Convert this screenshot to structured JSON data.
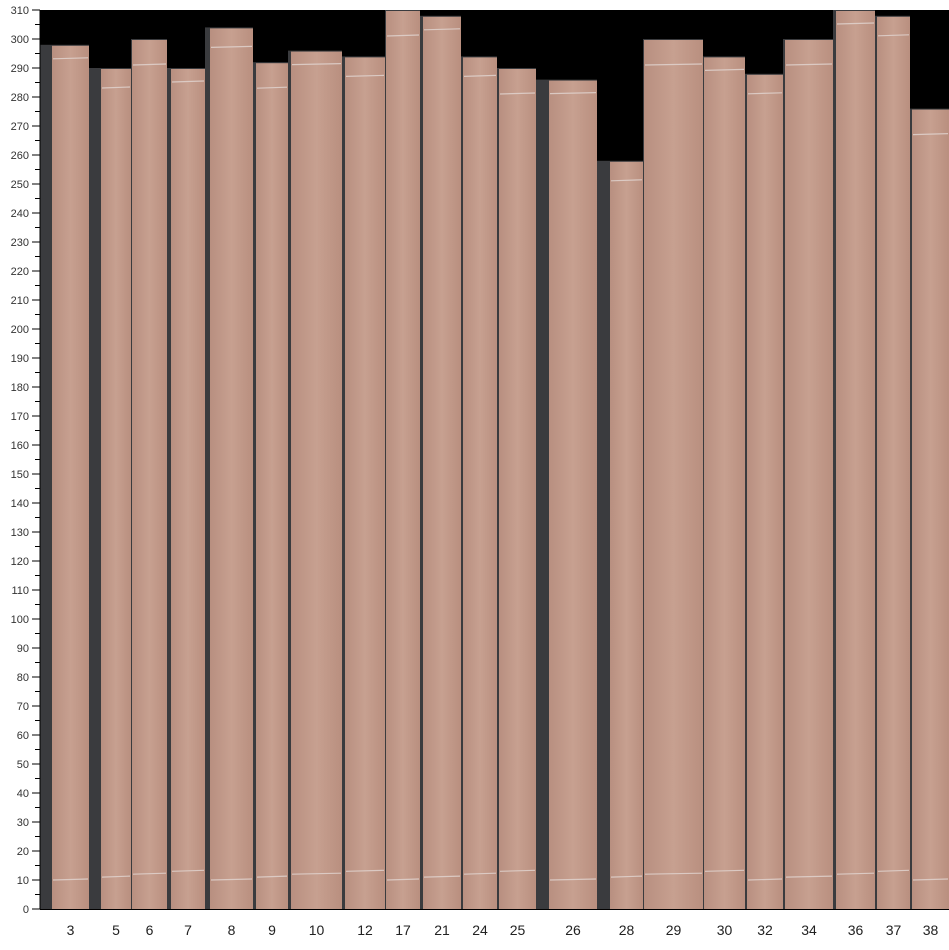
{
  "chart_data": {
    "type": "bar",
    "title": "",
    "xlabel": "",
    "ylabel": "",
    "ylim": [
      0,
      310
    ],
    "yticks": [
      0,
      10,
      20,
      30,
      40,
      50,
      60,
      70,
      80,
      90,
      100,
      110,
      120,
      130,
      140,
      150,
      160,
      170,
      180,
      190,
      200,
      210,
      220,
      230,
      240,
      250,
      260,
      270,
      280,
      290,
      300,
      310
    ],
    "grid": false,
    "categories": [
      "3",
      "5",
      "6",
      "7",
      "8",
      "9",
      "10",
      "12",
      "17",
      "21",
      "24",
      "25",
      "26",
      "28",
      "29",
      "30",
      "32",
      "34",
      "36",
      "37",
      "38"
    ],
    "values": [
      298,
      290,
      300,
      290,
      304,
      292,
      296,
      294,
      310,
      308,
      294,
      290,
      286,
      258,
      300,
      294,
      288,
      300,
      310,
      308,
      276
    ]
  },
  "colors": {
    "background_above": "#000000",
    "board_shadow": "#3a3b3e",
    "wood": "#c39a8a",
    "wood_dark": "#b48a7b",
    "tape_mark": "#e2d6d2"
  }
}
